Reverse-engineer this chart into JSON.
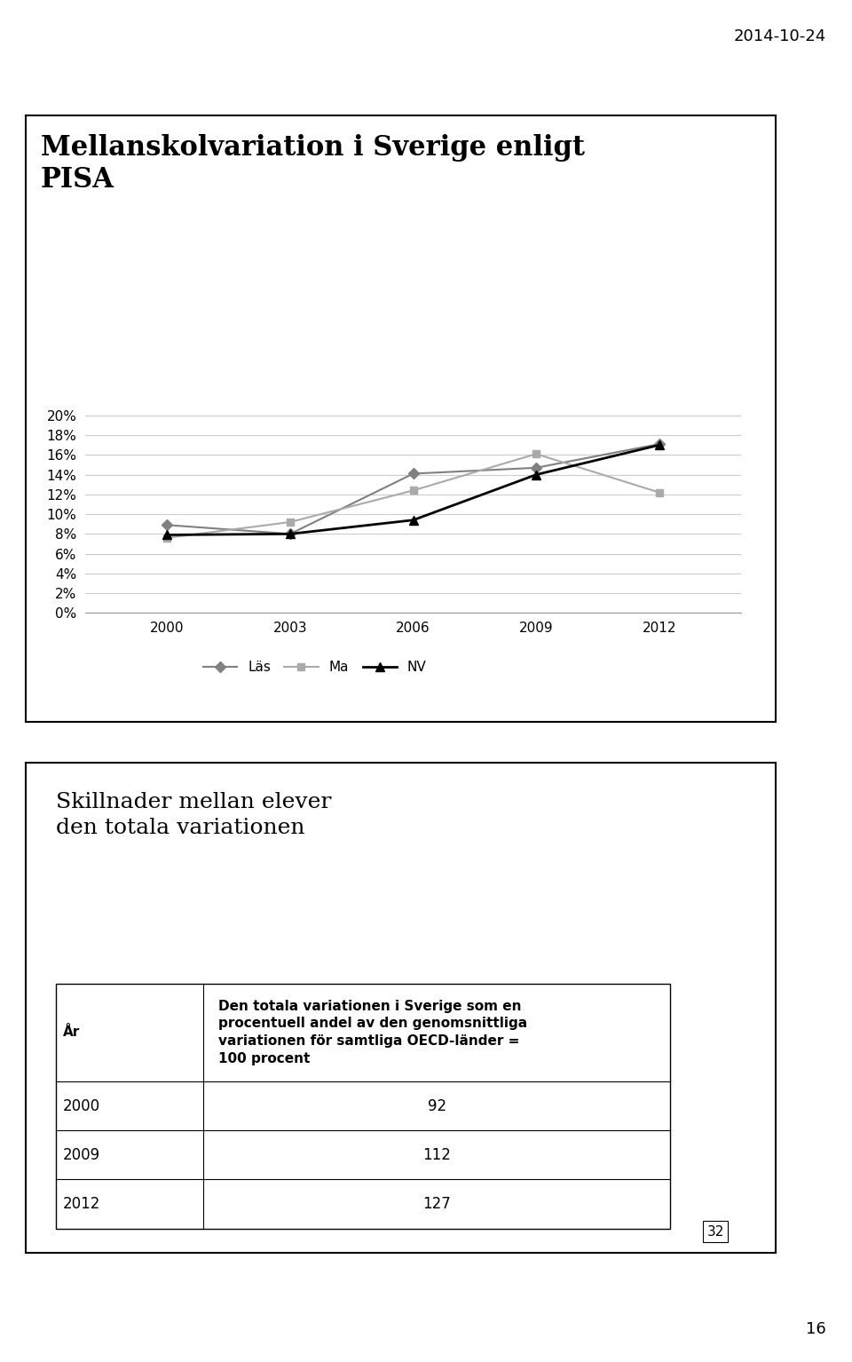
{
  "date_label": "2014-10-24",
  "chart_title_line1": "Mellanskolvariation i Sverige enligt",
  "chart_title_line2": "PISA",
  "years": [
    2000,
    2003,
    2006,
    2009,
    2012
  ],
  "las_values": [
    0.089,
    0.08,
    0.141,
    0.147,
    0.171
  ],
  "ma_values": [
    0.076,
    0.092,
    0.124,
    0.161,
    0.122
  ],
  "nv_values": [
    0.079,
    0.08,
    0.094,
    0.14,
    0.17
  ],
  "las_color": "#808080",
  "ma_color": "#aaaaaa",
  "nv_color": "#000000",
  "ylim_min": 0.0,
  "ylim_max": 0.2,
  "yticks": [
    0.0,
    0.02,
    0.04,
    0.06,
    0.08,
    0.1,
    0.12,
    0.14,
    0.16,
    0.18,
    0.2
  ],
  "ytick_labels": [
    "0%",
    "2%",
    "4%",
    "6%",
    "8%",
    "10%",
    "12%",
    "14%",
    "16%",
    "18%",
    "20%"
  ],
  "legend_labels": [
    "Läs",
    "Ma",
    "NV"
  ],
  "table_title_line1": "Skillnader mellan elever",
  "table_title_line2": "den totala variationen",
  "table_col1_header": "År",
  "table_col2_header": "Den totala variationen i Sverige som en\nprocentuell andel av den genomsnittliga\nvariationen för samtliga OECD-länder =\n100 procent",
  "table_rows": [
    [
      "2000",
      "92"
    ],
    [
      "2009",
      "112"
    ],
    [
      "2012",
      "127"
    ]
  ],
  "page_num": "32",
  "slide_num": "16",
  "bg_color": "#ffffff",
  "chart_border_color": "#000000",
  "table_border_color": "#000000"
}
